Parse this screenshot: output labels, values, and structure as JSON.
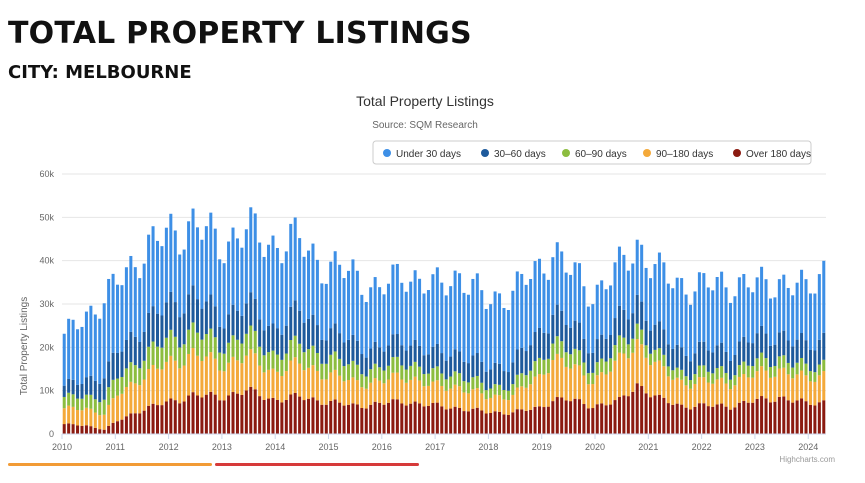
{
  "page": {
    "title": "TOTAL PROPERTY LISTINGS",
    "subtitle": "CITY: MELBOURNE",
    "accent_orange": "#f29b35",
    "accent_red": "#d63a3a"
  },
  "chart_data": {
    "type": "bar",
    "stacked": true,
    "title": "Total Property Listings",
    "subtitle": "Source: SQM Research",
    "xlabel": "",
    "ylabel": "Total Property Listings",
    "ylim": [
      0,
      60000
    ],
    "y_ticks": [
      0,
      10000,
      20000,
      30000,
      40000,
      50000,
      60000
    ],
    "y_tick_labels": [
      "0",
      "10k",
      "20k",
      "30k",
      "40k",
      "50k",
      "60k"
    ],
    "x_ticks": [
      "2010",
      "2011",
      "2012",
      "2013",
      "2014",
      "2015",
      "2016",
      "2017",
      "2018",
      "2019",
      "2020",
      "2021",
      "2022",
      "2023",
      "2024"
    ],
    "x_start": "2010-01",
    "months": 172,
    "grid": true,
    "legend": {
      "placement": "top-right"
    },
    "credits": "Highcharts.com",
    "series_order_bottom_to_top": [
      "Over 180 days",
      "90–180 days",
      "60–90 days",
      "30–60 days",
      "Under 30 days"
    ],
    "series": [
      {
        "name": "Under 30 days",
        "color": "#3d8fe6"
      },
      {
        "name": "30–60 days",
        "color": "#1e5a9c"
      },
      {
        "name": "60–90 days",
        "color": "#8cbd3f"
      },
      {
        "name": "90–180 days",
        "color": "#f4a93a"
      },
      {
        "name": "Over 180 days",
        "color": "#8b1a10"
      }
    ],
    "anchors": {
      "note": "monthly stacked values by date; points between anchors are read as linear steps",
      "columns": [
        "date",
        "over_180_days",
        "days_90_180",
        "days_60_90",
        "days_30_60",
        "under_30_days",
        "total"
      ],
      "rows": [
        [
          "2010-01",
          2200,
          3500,
          2500,
          2500,
          11500,
          22200
        ],
        [
          "2010-06",
          2000,
          4000,
          3000,
          4000,
          15000,
          28000
        ],
        [
          "2010-10",
          1000,
          3500,
          3500,
          5000,
          17500,
          30500
        ],
        [
          "2011-01",
          3000,
          6000,
          4000,
          6000,
          16000,
          35000
        ],
        [
          "2011-06",
          5500,
          7500,
          4500,
          7000,
          17000,
          41500
        ],
        [
          "2012-01",
          7500,
          9000,
          5500,
          8000,
          16500,
          46500
        ],
        [
          "2012-06",
          9000,
          9500,
          5500,
          8000,
          16500,
          48500
        ],
        [
          "2012-12",
          8500,
          7500,
          4500,
          6500,
          17000,
          44000
        ],
        [
          "2013-06",
          10000,
          8000,
          5000,
          7000,
          17000,
          47000
        ],
        [
          "2013-12",
          8000,
          6500,
          4000,
          6000,
          19500,
          44000
        ],
        [
          "2014-06",
          8500,
          7500,
          4500,
          7500,
          16500,
          44500
        ],
        [
          "2014-12",
          7500,
          6500,
          4000,
          6000,
          14500,
          38500
        ],
        [
          "2015-06",
          6500,
          5500,
          3500,
          5500,
          16000,
          37000
        ],
        [
          "2015-12",
          7000,
          5000,
          3000,
          4500,
          13500,
          33000
        ],
        [
          "2016-06",
          7500,
          6000,
          3500,
          5000,
          15500,
          37500
        ],
        [
          "2016-12",
          6500,
          4500,
          2800,
          4500,
          15200,
          33500
        ],
        [
          "2017-06",
          6000,
          5000,
          3000,
          5000,
          18000,
          37000
        ],
        [
          "2017-12",
          5000,
          3500,
          2200,
          4500,
          15300,
          30500
        ],
        [
          "2018-06",
          5000,
          4000,
          2500,
          5000,
          16500,
          33000
        ],
        [
          "2018-12",
          6000,
          7000,
          3500,
          6500,
          15000,
          38000
        ],
        [
          "2019-03",
          8000,
          10000,
          4000,
          7000,
          14000,
          43000
        ],
        [
          "2019-06",
          8000,
          8000,
          3500,
          6500,
          12500,
          38500
        ],
        [
          "2019-12",
          6500,
          6000,
          2800,
          5000,
          12200,
          32500
        ],
        [
          "2020-06",
          7500,
          9000,
          3500,
          6000,
          12000,
          38000
        ],
        [
          "2020-10",
          11500,
          10000,
          3500,
          6500,
          12500,
          44000
        ],
        [
          "2021-03",
          8000,
          7000,
          2500,
          5500,
          14000,
          37000
        ],
        [
          "2021-08",
          6500,
          5500,
          2200,
          5000,
          15300,
          34500
        ],
        [
          "2022-01",
          6500,
          5500,
          2500,
          5000,
          14500,
          34000
        ],
        [
          "2022-07",
          6500,
          5500,
          2500,
          5000,
          15500,
          35000
        ],
        [
          "2022-12",
          7500,
          6000,
          2800,
          5500,
          12200,
          34000
        ],
        [
          "2023-06",
          8500,
          6500,
          2800,
          5500,
          12200,
          35500
        ],
        [
          "2023-12",
          7000,
          5500,
          2500,
          5000,
          13000,
          33000
        ],
        [
          "2024-04",
          7500,
          6500,
          2500,
          6000,
          16000,
          38500
        ]
      ]
    }
  }
}
